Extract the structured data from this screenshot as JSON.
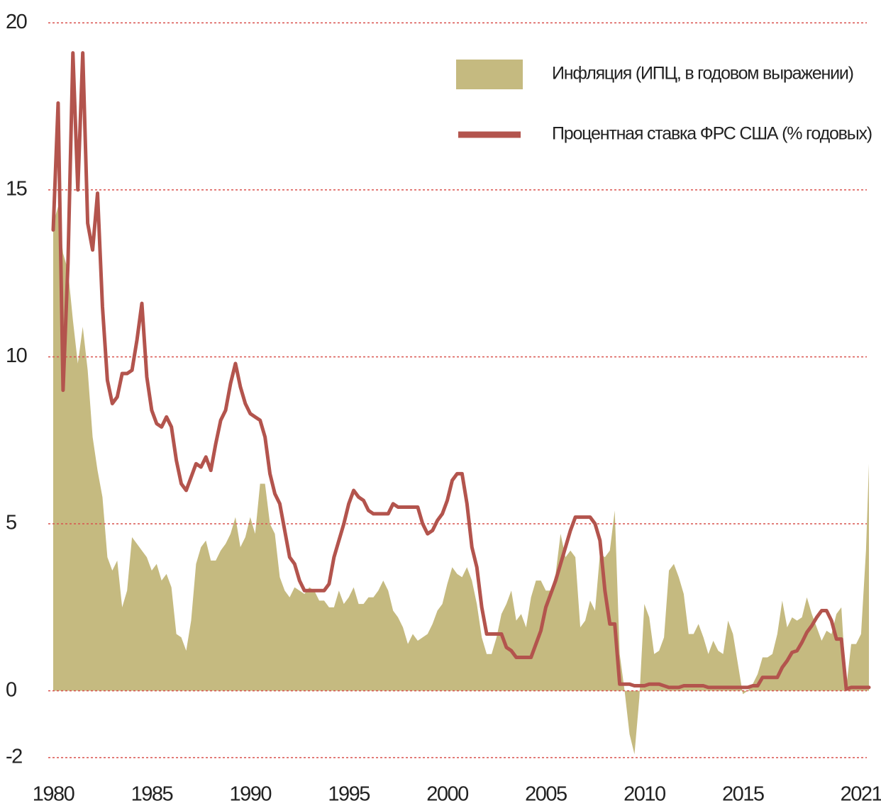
{
  "chart_data": {
    "type": "line_area",
    "legend": "upper right",
    "grid": true,
    "xlim": [
      1980,
      2021.4
    ],
    "ylim": [
      -2.3,
      20.6
    ],
    "xticks": [
      1980,
      1985,
      1990,
      1995,
      2000,
      2005,
      2010,
      2015,
      2021
    ],
    "yticks": [
      -2,
      0,
      5,
      10,
      15,
      20
    ],
    "x": [
      1980,
      1980.25,
      1980.5,
      1980.75,
      1981,
      1981.25,
      1981.5,
      1981.75,
      1982,
      1982.25,
      1982.5,
      1982.75,
      1983,
      1983.25,
      1983.5,
      1983.75,
      1984,
      1984.25,
      1984.5,
      1984.75,
      1985,
      1985.25,
      1985.5,
      1985.75,
      1986,
      1986.25,
      1986.5,
      1986.75,
      1987,
      1987.25,
      1987.5,
      1987.75,
      1988,
      1988.25,
      1988.5,
      1988.75,
      1989,
      1989.25,
      1989.5,
      1989.75,
      1990,
      1990.25,
      1990.5,
      1990.75,
      1991,
      1991.25,
      1991.5,
      1991.75,
      1992,
      1992.25,
      1992.5,
      1992.75,
      1993,
      1993.25,
      1993.5,
      1993.75,
      1994,
      1994.25,
      1994.5,
      1994.75,
      1995,
      1995.25,
      1995.5,
      1995.75,
      1996,
      1996.25,
      1996.5,
      1996.75,
      1997,
      1997.25,
      1997.5,
      1997.75,
      1998,
      1998.25,
      1998.5,
      1998.75,
      1999,
      1999.25,
      1999.5,
      1999.75,
      2000,
      2000.25,
      2000.5,
      2000.75,
      2001,
      2001.25,
      2001.5,
      2001.75,
      2002,
      2002.25,
      2002.5,
      2002.75,
      2003,
      2003.25,
      2003.5,
      2003.75,
      2004,
      2004.25,
      2004.5,
      2004.75,
      2005,
      2005.25,
      2005.5,
      2005.75,
      2006,
      2006.25,
      2006.5,
      2006.75,
      2007,
      2007.25,
      2007.5,
      2007.75,
      2008,
      2008.25,
      2008.5,
      2008.75,
      2009,
      2009.25,
      2009.5,
      2009.75,
      2010,
      2010.25,
      2010.5,
      2010.75,
      2011,
      2011.25,
      2011.5,
      2011.75,
      2012,
      2012.25,
      2012.5,
      2012.75,
      2013,
      2013.25,
      2013.5,
      2013.75,
      2014,
      2014.25,
      2014.5,
      2014.75,
      2015,
      2015.25,
      2015.5,
      2015.75,
      2016,
      2016.25,
      2016.5,
      2016.75,
      2017,
      2017.25,
      2017.5,
      2017.75,
      2018,
      2018.25,
      2018.5,
      2018.75,
      2019,
      2019.25,
      2019.5,
      2019.75,
      2020,
      2020.25,
      2020.5,
      2020.75,
      2021,
      2021.25,
      2021.4
    ],
    "series": [
      {
        "name": "Инфляция (ИПЦ, в годовом выражении)",
        "kind": "area",
        "color": "#c5ba80",
        "values": [
          14.0,
          14.5,
          13.1,
          12.6,
          11.1,
          9.8,
          10.9,
          9.6,
          7.6,
          6.6,
          5.8,
          4.0,
          3.6,
          3.9,
          2.5,
          3.0,
          4.6,
          4.4,
          4.2,
          4.0,
          3.6,
          3.8,
          3.3,
          3.5,
          3.1,
          1.7,
          1.6,
          1.2,
          2.1,
          3.8,
          4.3,
          4.5,
          3.9,
          3.9,
          4.2,
          4.4,
          4.7,
          5.2,
          4.3,
          4.6,
          5.2,
          4.7,
          6.2,
          6.2,
          5.0,
          4.7,
          3.4,
          3.0,
          2.8,
          3.1,
          3.0,
          2.9,
          3.1,
          3.0,
          2.7,
          2.7,
          2.5,
          2.5,
          3.0,
          2.6,
          2.8,
          3.1,
          2.6,
          2.6,
          2.8,
          2.8,
          3.0,
          3.3,
          3.0,
          2.4,
          2.2,
          1.9,
          1.4,
          1.7,
          1.5,
          1.6,
          1.7,
          2.0,
          2.4,
          2.6,
          3.2,
          3.7,
          3.5,
          3.4,
          3.7,
          3.3,
          2.6,
          1.6,
          1.1,
          1.1,
          1.6,
          2.3,
          2.6,
          3.0,
          2.1,
          2.3,
          1.9,
          2.8,
          3.3,
          3.3,
          3.0,
          3.0,
          3.5,
          4.7,
          4.0,
          4.2,
          4.0,
          1.9,
          2.1,
          2.7,
          2.4,
          4.1,
          4.0,
          4.2,
          5.4,
          1.1,
          0.0,
          -1.3,
          -1.9,
          -0.2,
          2.6,
          2.2,
          1.1,
          1.2,
          1.6,
          3.6,
          3.8,
          3.4,
          2.9,
          1.7,
          1.7,
          2.0,
          1.6,
          1.1,
          1.5,
          1.2,
          1.1,
          2.1,
          1.7,
          0.8,
          -0.1,
          0.0,
          0.2,
          0.5,
          1.0,
          1.0,
          1.1,
          1.7,
          2.7,
          1.9,
          2.2,
          2.1,
          2.2,
          2.8,
          2.3,
          1.9,
          1.5,
          1.8,
          1.7,
          2.3,
          2.5,
          0.1,
          1.4,
          1.4,
          1.7,
          4.2,
          6.8
        ]
      },
      {
        "name": "Процентная ставка ФРС США (% годовых)",
        "kind": "line",
        "color": "#b3544d",
        "values": [
          13.8,
          17.6,
          9.0,
          12.8,
          19.1,
          15.0,
          19.1,
          14.0,
          13.2,
          14.9,
          11.5,
          9.3,
          8.6,
          8.8,
          9.5,
          9.5,
          9.6,
          10.5,
          11.6,
          9.4,
          8.4,
          8.0,
          7.9,
          8.2,
          7.9,
          6.9,
          6.2,
          6.0,
          6.4,
          6.8,
          6.7,
          7.0,
          6.6,
          7.4,
          8.1,
          8.4,
          9.2,
          9.8,
          9.1,
          8.6,
          8.3,
          8.2,
          8.1,
          7.6,
          6.5,
          5.9,
          5.6,
          4.8,
          4.0,
          3.8,
          3.3,
          3.0,
          3.0,
          3.0,
          3.0,
          3.0,
          3.2,
          4.0,
          4.5,
          5.0,
          5.6,
          6.0,
          5.8,
          5.7,
          5.4,
          5.3,
          5.3,
          5.3,
          5.3,
          5.6,
          5.5,
          5.5,
          5.5,
          5.5,
          5.5,
          5.0,
          4.7,
          4.8,
          5.1,
          5.3,
          5.7,
          6.3,
          6.5,
          6.5,
          5.6,
          4.3,
          3.7,
          2.5,
          1.7,
          1.7,
          1.7,
          1.7,
          1.3,
          1.2,
          1.0,
          1.0,
          1.0,
          1.0,
          1.4,
          1.8,
          2.5,
          2.9,
          3.3,
          3.8,
          4.3,
          4.8,
          5.2,
          5.2,
          5.2,
          5.2,
          5.0,
          4.5,
          3.0,
          2.0,
          2.0,
          0.2,
          0.2,
          0.2,
          0.15,
          0.15,
          0.15,
          0.2,
          0.2,
          0.2,
          0.15,
          0.1,
          0.1,
          0.1,
          0.15,
          0.15,
          0.15,
          0.15,
          0.15,
          0.1,
          0.1,
          0.1,
          0.1,
          0.1,
          0.1,
          0.1,
          0.1,
          0.1,
          0.15,
          0.15,
          0.4,
          0.4,
          0.4,
          0.4,
          0.7,
          0.9,
          1.15,
          1.2,
          1.45,
          1.75,
          1.95,
          2.2,
          2.4,
          2.4,
          2.1,
          1.55,
          1.55,
          0.05,
          0.1,
          0.1,
          0.1,
          0.1,
          0.1
        ]
      }
    ]
  }
}
